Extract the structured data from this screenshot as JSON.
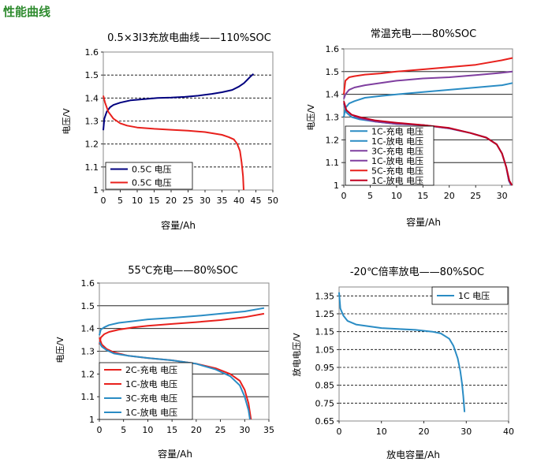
{
  "section_title": "性能曲线",
  "chart_data": [
    {
      "type": "line",
      "title": "0.5×3I3充放电曲线——110%SOC",
      "xlabel": "容量/Ah",
      "ylabel": "电压/V",
      "xlim": [
        0,
        50
      ],
      "ylim": [
        1,
        1.6
      ],
      "xticks": [
        0,
        5,
        10,
        15,
        20,
        25,
        30,
        35,
        40,
        45,
        50
      ],
      "yticks": [
        1,
        1.1,
        1.2,
        1.3,
        1.4,
        1.5,
        1.6
      ],
      "ytick_labels": [
        "1",
        "1.1",
        "1.2",
        "1.3",
        "1.4",
        "1.5",
        "1.6"
      ],
      "grid": "horizontal-dashed",
      "legend": "bottom-left",
      "series": [
        {
          "name": "0.5C 电压",
          "color": "#00007f",
          "x": [
            0,
            0.3,
            1,
            2,
            3,
            5,
            8,
            12,
            16,
            20,
            24,
            28,
            32,
            35,
            38,
            40,
            41.5,
            42.5,
            43.5,
            44.3
          ],
          "y": [
            1.26,
            1.31,
            1.34,
            1.36,
            1.37,
            1.38,
            1.39,
            1.395,
            1.4,
            1.402,
            1.405,
            1.41,
            1.418,
            1.425,
            1.435,
            1.45,
            1.465,
            1.48,
            1.495,
            1.505
          ]
        },
        {
          "name": "0.5C 电压",
          "color": "#e8201c",
          "x": [
            0,
            0.5,
            1.5,
            3,
            5,
            7,
            10,
            15,
            20,
            25,
            30,
            35,
            37,
            38.5,
            39.5,
            40.3,
            40.8,
            41.2,
            41.4
          ],
          "y": [
            1.41,
            1.38,
            1.34,
            1.31,
            1.29,
            1.28,
            1.272,
            1.266,
            1.262,
            1.258,
            1.252,
            1.24,
            1.23,
            1.22,
            1.2,
            1.17,
            1.12,
            1.06,
            1
          ]
        }
      ]
    },
    {
      "type": "line",
      "title": "常温充电——80%SOC",
      "xlabel": "容量/Ah",
      "ylabel": "电压/V",
      "xlim": [
        0,
        32
      ],
      "ylim": [
        1,
        1.6
      ],
      "xticks": [
        0,
        5,
        10,
        15,
        20,
        25,
        30
      ],
      "yticks": [
        1,
        1.1,
        1.2,
        1.3,
        1.4,
        1.5,
        1.6
      ],
      "ytick_labels": [
        "1",
        "1.1",
        "1.2",
        "1.3",
        "1.4",
        "1.5",
        "1.6"
      ],
      "grid": "horizontal-solid",
      "legend": "bottom-left",
      "series": [
        {
          "name": "1C-充电 电压",
          "color": "#2a8cc4",
          "x": [
            0,
            0.3,
            1,
            2,
            4,
            7,
            10,
            15,
            20,
            25,
            30,
            32
          ],
          "y": [
            1.3,
            1.34,
            1.36,
            1.37,
            1.385,
            1.393,
            1.4,
            1.41,
            1.42,
            1.43,
            1.44,
            1.45
          ]
        },
        {
          "name": "1C-放电 电压",
          "color": "#2a8cc4",
          "x": [
            0,
            0.5,
            1.5,
            3,
            6,
            10,
            15,
            20,
            24,
            27,
            29,
            30,
            30.8,
            31.3,
            31.7
          ],
          "y": [
            1.36,
            1.32,
            1.3,
            1.29,
            1.28,
            1.27,
            1.265,
            1.25,
            1.23,
            1.21,
            1.18,
            1.14,
            1.08,
            1.02,
            1
          ]
        },
        {
          "name": "3C-充电 电压",
          "color": "#7f3f9f",
          "x": [
            0,
            0.3,
            1,
            2,
            4,
            7,
            10,
            15,
            20,
            25,
            30,
            32
          ],
          "y": [
            1.38,
            1.4,
            1.42,
            1.43,
            1.44,
            1.45,
            1.46,
            1.47,
            1.475,
            1.485,
            1.495,
            1.5
          ]
        },
        {
          "name": "1C-放电 电压",
          "color": "#7f3f9f",
          "x": [
            0,
            0.5,
            1.5,
            3,
            6,
            10,
            15,
            20,
            24,
            27,
            29,
            30,
            30.8,
            31.3,
            31.8
          ],
          "y": [
            1.36,
            1.33,
            1.31,
            1.295,
            1.28,
            1.27,
            1.265,
            1.25,
            1.23,
            1.21,
            1.18,
            1.14,
            1.08,
            1.02,
            1
          ]
        },
        {
          "name": "5C-充电 电压",
          "color": "#e8201c",
          "x": [
            0,
            0.3,
            1,
            2,
            4,
            7,
            10,
            15,
            20,
            25,
            30,
            32
          ],
          "y": [
            1.4,
            1.46,
            1.475,
            1.48,
            1.487,
            1.492,
            1.5,
            1.51,
            1.52,
            1.53,
            1.55,
            1.56
          ]
        },
        {
          "name": "1C-放电 电压",
          "color": "#c00020",
          "x": [
            0,
            0.5,
            1.5,
            3,
            6,
            10,
            15,
            20,
            24,
            27,
            29,
            30,
            30.8,
            31.4,
            31.9
          ],
          "y": [
            1.37,
            1.33,
            1.31,
            1.3,
            1.285,
            1.275,
            1.265,
            1.252,
            1.23,
            1.21,
            1.18,
            1.14,
            1.08,
            1.02,
            1
          ]
        }
      ]
    },
    {
      "type": "line",
      "title": "55℃充电——80%SOC",
      "xlabel": "容量/Ah",
      "ylabel": "电压/V",
      "xlim": [
        0,
        35
      ],
      "ylim": [
        1,
        1.6
      ],
      "xticks": [
        0,
        5,
        10,
        15,
        20,
        25,
        30,
        35
      ],
      "yticks": [
        1,
        1.1,
        1.2,
        1.3,
        1.4,
        1.5,
        1.6
      ],
      "ytick_labels": [
        "1",
        "1.1",
        "1.2",
        "1.3",
        "1.4",
        "1.5",
        "1.6"
      ],
      "grid": "horizontal-solid",
      "legend": "bottom-left",
      "series": [
        {
          "name": "2C-充电 电压",
          "color": "#e8201c",
          "x": [
            0,
            0.3,
            1,
            2,
            4,
            7,
            10,
            15,
            20,
            25,
            30,
            34
          ],
          "y": [
            1.33,
            1.36,
            1.375,
            1.385,
            1.395,
            1.405,
            1.412,
            1.42,
            1.428,
            1.437,
            1.45,
            1.465
          ]
        },
        {
          "name": "1C-放电 电压",
          "color": "#e8201c",
          "x": [
            0,
            0.5,
            1.5,
            3,
            6,
            10,
            15,
            20,
            24,
            27,
            29,
            30,
            30.8,
            31.3
          ],
          "y": [
            1.36,
            1.33,
            1.31,
            1.295,
            1.28,
            1.27,
            1.26,
            1.245,
            1.225,
            1.2,
            1.17,
            1.13,
            1.07,
            1
          ]
        },
        {
          "name": "3C-充电 电压",
          "color": "#2a8cc4",
          "x": [
            0,
            0.3,
            1,
            2,
            4,
            7,
            10,
            15,
            20,
            25,
            30,
            34
          ],
          "y": [
            1.37,
            1.395,
            1.405,
            1.415,
            1.425,
            1.432,
            1.44,
            1.447,
            1.455,
            1.465,
            1.475,
            1.49
          ]
        },
        {
          "name": "1C-放电 电压",
          "color": "#2a8cc4",
          "x": [
            0,
            0.5,
            1.5,
            3,
            6,
            10,
            15,
            20,
            24,
            27,
            29,
            30,
            30.8,
            31.1
          ],
          "y": [
            1.34,
            1.32,
            1.305,
            1.29,
            1.28,
            1.27,
            1.26,
            1.245,
            1.22,
            1.19,
            1.15,
            1.1,
            1.04,
            1
          ]
        }
      ]
    },
    {
      "type": "line",
      "title": "-20℃倍率放电——80%SOC",
      "xlabel": "放电容量/Ah",
      "ylabel": "放电电压/V",
      "xlim": [
        0,
        40
      ],
      "ylim": [
        0.65,
        1.4
      ],
      "xticks": [
        0,
        10,
        20,
        30,
        40
      ],
      "yticks": [
        0.65,
        0.75,
        0.85,
        0.95,
        1.05,
        1.15,
        1.25,
        1.35
      ],
      "ytick_labels": [
        "0.65",
        "0.75",
        "0.85",
        "0.95",
        "1.05",
        "1.15",
        "1.25",
        "1.35"
      ],
      "grid": "horizontal-dashed",
      "legend": "top-right",
      "series": [
        {
          "name": "1C 电压",
          "color": "#2a8cc4",
          "x": [
            0,
            0.3,
            1,
            2,
            4,
            7,
            10,
            14,
            18,
            22,
            24,
            26,
            27,
            28,
            28.6,
            29,
            29.3,
            29.5,
            29.6
          ],
          "y": [
            1.37,
            1.28,
            1.24,
            1.21,
            1.19,
            1.18,
            1.17,
            1.165,
            1.16,
            1.15,
            1.14,
            1.11,
            1.07,
            1.0,
            0.93,
            0.86,
            0.79,
            0.73,
            0.7
          ]
        }
      ]
    }
  ]
}
